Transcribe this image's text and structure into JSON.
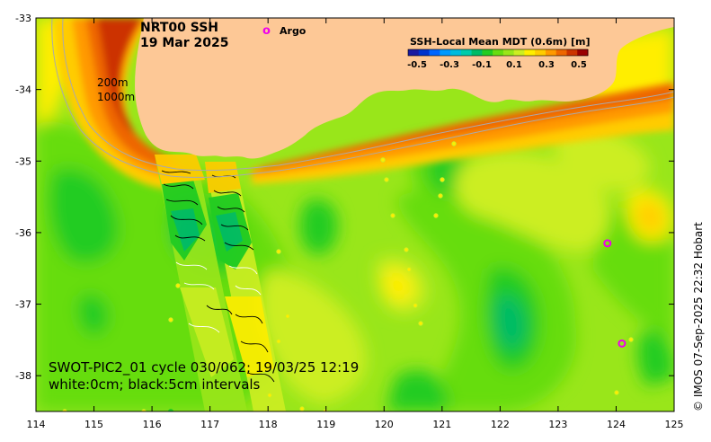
{
  "map": {
    "title_line1": "NRT00 SSH",
    "title_line2": "19 Mar 2025",
    "argo_legend_marker": "o",
    "argo_legend_label": "Argo",
    "colorbar": {
      "title": "SSH-Local Mean MDT (0.6m) [m]",
      "tick_labels": [
        "-0.5",
        "-0.3",
        "-0.1",
        "0.1",
        "0.3",
        "0.5"
      ],
      "colors": [
        "#1a1aa0",
        "#0033cc",
        "#0066ff",
        "#0099ff",
        "#00bbdd",
        "#00ccaa",
        "#00bb66",
        "#22cc22",
        "#66dd11",
        "#99e61a",
        "#ccee22",
        "#ffee00",
        "#ffcc00",
        "#ff9900",
        "#ee6600",
        "#cc3300",
        "#990000"
      ]
    },
    "contour_labels": [
      "200m",
      "1000m"
    ],
    "swot_line1": "SWOT-PIC2_01 cycle 030/062; 19/03/25 12:19",
    "swot_line2": "white:0cm; black:5cm intervals",
    "credit": "© IMOS 07-Sep-2025 22:32 Hobart",
    "x_ticks": [
      "114",
      "115",
      "116",
      "117",
      "118",
      "119",
      "120",
      "121",
      "122",
      "123",
      "124",
      "125"
    ],
    "y_ticks": [
      "-33",
      "-34",
      "-35",
      "-36",
      "-37",
      "-38"
    ],
    "extent": {
      "lon_min": 114,
      "lon_max": 125,
      "lat_min": -38.5,
      "lat_max": -33
    },
    "argo_floats": [
      {
        "lon": 123.85,
        "lat": -36.15
      },
      {
        "lon": 124.1,
        "lat": -37.55
      }
    ],
    "colors": {
      "land": "#fdc896",
      "argo": "#ee00ee",
      "ocean_base": "#99e61a"
    }
  }
}
